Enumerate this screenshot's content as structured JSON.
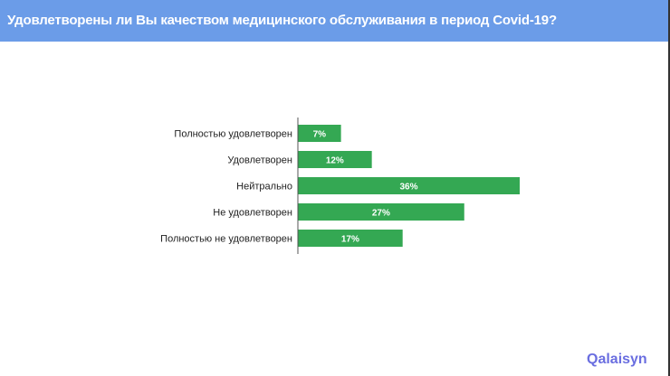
{
  "header": {
    "title": "Удовлетворены ли Вы качеством медицинского обслуживания в период Covid-19?"
  },
  "brand": {
    "logo_text": "Qalaisyn",
    "color": "#6a6ee0"
  },
  "chart_data": {
    "type": "bar",
    "orientation": "horizontal",
    "title": "Удовлетворены ли Вы качеством медицинского обслуживания в период Covid-19?",
    "categories": [
      "Полностью удовлетворен",
      "Удовлетворен",
      "Нейтрально",
      "Не удовлетворен",
      "Полностью не удовлетворен"
    ],
    "values": [
      7,
      12,
      36,
      27,
      17
    ],
    "data_labels": [
      "7%",
      "12%",
      "36%",
      "27%",
      "17%"
    ],
    "unit": "%",
    "xlim": [
      0,
      36
    ],
    "grid": false,
    "bar_color": "#34a853"
  }
}
